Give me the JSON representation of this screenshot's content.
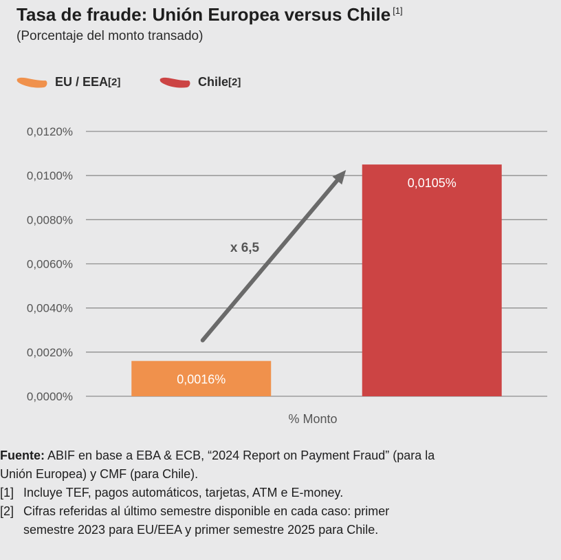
{
  "header": {
    "title": "Tasa de fraude: Unión Europea versus Chile",
    "title_note": "[1]",
    "subtitle": "(Porcentaje del monto transado)"
  },
  "legend": [
    {
      "label": "EU / EEA",
      "note": "[2]",
      "color": "#f0914c"
    },
    {
      "label": "Chile",
      "note": "[2]",
      "color": "#cc4444"
    }
  ],
  "chart_data": {
    "type": "bar",
    "categories": [
      "% Monto"
    ],
    "series": [
      {
        "name": "EU / EEA",
        "values": [
          0.0016
        ],
        "label": "0,0016%",
        "color": "#f0914c"
      },
      {
        "name": "Chile",
        "values": [
          0.0105
        ],
        "label": "0,0105%",
        "color": "#cc4444"
      }
    ],
    "xlabel": "% Monto",
    "ylabel": "",
    "ylim": [
      0,
      0.012
    ],
    "yticks": [
      0,
      0.002,
      0.004,
      0.006,
      0.008,
      0.01,
      0.012
    ],
    "ytick_labels": [
      "0,0000%",
      "0,0020%",
      "0,0040%",
      "0,0060%",
      "0,0080%",
      "0,0100%",
      "0,0120%"
    ],
    "grid": true,
    "annotation": {
      "text": "x 6,5",
      "type": "arrow",
      "from_series": "EU / EEA",
      "to_series": "Chile"
    }
  },
  "footnotes": {
    "source_label": "Fuente:",
    "source_text_1": " ABIF en base a EBA & ECB, “2024 Report on Payment Fraud” (para la",
    "source_text_2": "Unión Europea) y CMF (para Chile).",
    "note1_num": "[1]",
    "note1_text": "Incluye TEF, pagos automáticos, tarjetas, ATM e E-money.",
    "note2_num": "[2]",
    "note2_text_1": "Cifras referidas al último semestre disponible en cada caso: primer",
    "note2_text_2": "semestre 2023 para EU/EEA y primer semestre 2025 para Chile."
  },
  "colors": {
    "background": "#e9e9ea",
    "grid": "#8f8f8f",
    "arrow": "#6a6a6a",
    "text": "#1e1e1e"
  }
}
